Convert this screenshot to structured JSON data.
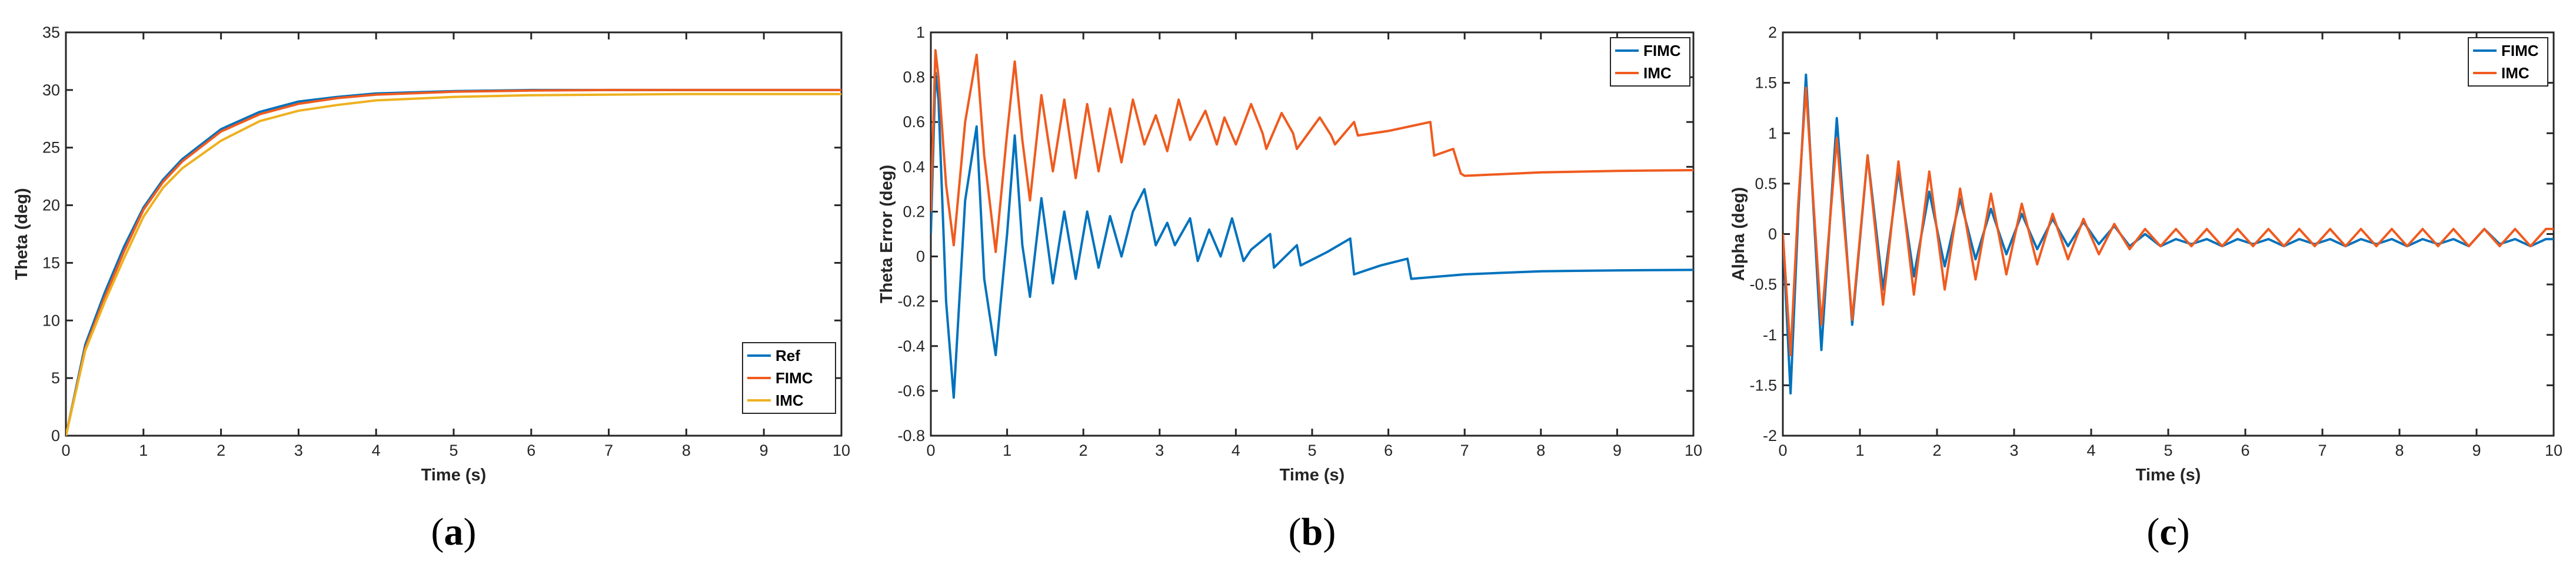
{
  "colors": {
    "blue": "#0072bd",
    "orange": "#ef5b1f",
    "yellow": "#edb120",
    "axis": "#262626"
  },
  "chart_data": [
    {
      "type": "line",
      "panel_label": "a",
      "xlabel": "Time (s)",
      "ylabel": "Theta (deg)",
      "xlim": [
        0,
        10
      ],
      "ylim": [
        0,
        35
      ],
      "xticks": [
        0,
        1,
        2,
        3,
        4,
        5,
        6,
        7,
        8,
        9,
        10
      ],
      "yticks": [
        0,
        5,
        10,
        15,
        20,
        25,
        30,
        35
      ],
      "grid": false,
      "legend": {
        "position": "bottom-right",
        "entries": [
          "Ref",
          "FIMC",
          "IMC"
        ]
      },
      "series": [
        {
          "name": "Ref",
          "color": "#0072bd",
          "x": [
            0,
            0.25,
            0.5,
            0.75,
            1,
            1.25,
            1.5,
            2,
            2.5,
            3,
            3.5,
            4,
            5,
            6,
            7,
            8,
            9,
            10
          ],
          "values": [
            0,
            7.9,
            12.4,
            16.4,
            19.8,
            22.2,
            24.0,
            26.6,
            28.1,
            29.0,
            29.4,
            29.7,
            29.9,
            30.0,
            30.0,
            30.0,
            30.0,
            30.0
          ]
        },
        {
          "name": "FIMC",
          "color": "#ef5b1f",
          "x": [
            0,
            0.25,
            0.5,
            0.75,
            1,
            1.25,
            1.5,
            2,
            2.5,
            3,
            3.5,
            4,
            5,
            6,
            7,
            8,
            9,
            10
          ],
          "values": [
            0,
            7.6,
            12.0,
            16.0,
            19.6,
            22.0,
            23.8,
            26.4,
            27.9,
            28.8,
            29.3,
            29.6,
            29.85,
            29.95,
            30.0,
            30.0,
            30.0,
            30.0
          ]
        },
        {
          "name": "IMC",
          "color": "#edb120",
          "x": [
            0,
            0.25,
            0.5,
            0.75,
            1,
            1.25,
            1.5,
            2,
            2.5,
            3,
            3.5,
            4,
            5,
            6,
            7,
            8,
            9,
            10
          ],
          "values": [
            0,
            7.4,
            11.6,
            15.4,
            19.0,
            21.5,
            23.2,
            25.6,
            27.3,
            28.2,
            28.7,
            29.1,
            29.4,
            29.55,
            29.6,
            29.65,
            29.65,
            29.65
          ]
        }
      ]
    },
    {
      "type": "line",
      "panel_label": "b",
      "xlabel": "Time (s)",
      "ylabel": "Theta Error (deg)",
      "xlim": [
        0,
        10
      ],
      "ylim": [
        -0.8,
        1
      ],
      "xticks": [
        0,
        1,
        2,
        3,
        4,
        5,
        6,
        7,
        8,
        9,
        10
      ],
      "yticks": [
        -0.8,
        -0.6,
        -0.4,
        -0.2,
        0,
        0.2,
        0.4,
        0.6,
        0.8,
        1
      ],
      "grid": false,
      "legend": {
        "position": "top-right",
        "entries": [
          "FIMC",
          "IMC"
        ]
      },
      "series": [
        {
          "name": "FIMC",
          "color": "#0072bd",
          "x": [
            0,
            0.06,
            0.1,
            0.2,
            0.3,
            0.45,
            0.6,
            0.7,
            0.85,
            1.0,
            1.1,
            1.2,
            1.3,
            1.45,
            1.6,
            1.75,
            1.9,
            2.05,
            2.2,
            2.35,
            2.5,
            2.65,
            2.8,
            2.95,
            3.1,
            3.2,
            3.4,
            3.5,
            3.65,
            3.8,
            3.95,
            4.1,
            4.2,
            4.45,
            4.5,
            4.8,
            4.85,
            5.2,
            5.5,
            5.55,
            5.9,
            6.25,
            6.3,
            7,
            8,
            9,
            10
          ],
          "values": [
            0.1,
            0.82,
            0.7,
            -0.2,
            -0.63,
            0.25,
            0.58,
            -0.1,
            -0.44,
            0.1,
            0.54,
            0.05,
            -0.18,
            0.26,
            -0.12,
            0.2,
            -0.1,
            0.2,
            -0.05,
            0.18,
            0.0,
            0.2,
            0.3,
            0.05,
            0.15,
            0.05,
            0.17,
            -0.02,
            0.12,
            0.0,
            0.17,
            -0.02,
            0.03,
            0.1,
            -0.05,
            0.05,
            -0.04,
            0.02,
            0.08,
            -0.08,
            -0.04,
            -0.01,
            -0.1,
            -0.08,
            -0.066,
            -0.062,
            -0.06
          ]
        },
        {
          "name": "IMC",
          "color": "#ef5b1f",
          "x": [
            0,
            0.06,
            0.1,
            0.2,
            0.3,
            0.45,
            0.6,
            0.7,
            0.85,
            1.0,
            1.1,
            1.2,
            1.3,
            1.45,
            1.6,
            1.75,
            1.9,
            2.05,
            2.2,
            2.35,
            2.5,
            2.65,
            2.8,
            2.95,
            3.1,
            3.25,
            3.4,
            3.6,
            3.75,
            3.85,
            4.0,
            4.2,
            4.35,
            4.4,
            4.6,
            4.75,
            4.8,
            5.1,
            5.25,
            5.3,
            5.55,
            5.6,
            6.0,
            6.55,
            6.6,
            6.85,
            6.95,
            7,
            8,
            9,
            10
          ],
          "values": [
            0.2,
            0.92,
            0.8,
            0.32,
            0.05,
            0.6,
            0.9,
            0.45,
            0.02,
            0.55,
            0.87,
            0.52,
            0.25,
            0.72,
            0.38,
            0.7,
            0.35,
            0.68,
            0.38,
            0.66,
            0.42,
            0.7,
            0.5,
            0.63,
            0.47,
            0.7,
            0.52,
            0.65,
            0.5,
            0.62,
            0.5,
            0.68,
            0.55,
            0.48,
            0.64,
            0.55,
            0.48,
            0.62,
            0.54,
            0.5,
            0.6,
            0.54,
            0.56,
            0.6,
            0.45,
            0.48,
            0.37,
            0.36,
            0.375,
            0.382,
            0.385
          ]
        }
      ]
    },
    {
      "type": "line",
      "panel_label": "c",
      "xlabel": "Time (s)",
      "ylabel": "Alpha (deg)",
      "xlim": [
        0,
        10
      ],
      "ylim": [
        -2,
        2
      ],
      "xticks": [
        0,
        1,
        2,
        3,
        4,
        5,
        6,
        7,
        8,
        9,
        10
      ],
      "yticks": [
        -2,
        -1.5,
        -1,
        -0.5,
        0,
        0.5,
        1,
        1.5,
        2
      ],
      "grid": false,
      "legend": {
        "position": "top-right",
        "entries": [
          "FIMC",
          "IMC"
        ]
      },
      "series": [
        {
          "name": "FIMC",
          "color": "#0072bd",
          "x": [
            0,
            0.1,
            0.2,
            0.3,
            0.5,
            0.7,
            0.9,
            1.1,
            1.3,
            1.5,
            1.7,
            1.9,
            2.1,
            2.3,
            2.5,
            2.7,
            2.9,
            3.1,
            3.3,
            3.5,
            3.7,
            3.9,
            4.1,
            4.3,
            4.5,
            4.7,
            4.9,
            5.1,
            5.3,
            5.5,
            5.7,
            5.9,
            6.1,
            6.3,
            6.5,
            6.7,
            6.9,
            7.1,
            7.3,
            7.5,
            7.7,
            7.9,
            8.1,
            8.3,
            8.5,
            8.7,
            8.9,
            9.1,
            9.3,
            9.5,
            9.7,
            9.9,
            10
          ],
          "values": [
            0,
            -1.58,
            0.2,
            1.58,
            -1.15,
            1.15,
            -0.9,
            0.78,
            -0.55,
            0.62,
            -0.42,
            0.42,
            -0.32,
            0.35,
            -0.25,
            0.25,
            -0.2,
            0.2,
            -0.15,
            0.15,
            -0.12,
            0.12,
            -0.1,
            0.08,
            -0.12,
            0.0,
            -0.12,
            -0.05,
            -0.1,
            -0.05,
            -0.12,
            -0.05,
            -0.1,
            -0.05,
            -0.12,
            -0.05,
            -0.1,
            -0.05,
            -0.12,
            -0.05,
            -0.1,
            -0.05,
            -0.12,
            -0.05,
            -0.1,
            -0.05,
            -0.12,
            0.05,
            -0.1,
            -0.05,
            -0.12,
            -0.05,
            -0.05
          ]
        },
        {
          "name": "IMC",
          "color": "#ef5b1f",
          "x": [
            0,
            0.1,
            0.2,
            0.3,
            0.5,
            0.7,
            0.9,
            1.1,
            1.3,
            1.5,
            1.7,
            1.9,
            2.1,
            2.3,
            2.5,
            2.7,
            2.9,
            3.1,
            3.3,
            3.5,
            3.7,
            3.9,
            4.1,
            4.3,
            4.5,
            4.7,
            4.9,
            5.1,
            5.3,
            5.5,
            5.7,
            5.9,
            6.1,
            6.3,
            6.5,
            6.7,
            6.9,
            7.1,
            7.3,
            7.5,
            7.7,
            7.9,
            8.1,
            8.3,
            8.5,
            8.7,
            8.9,
            9.1,
            9.3,
            9.5,
            9.7,
            9.9,
            10
          ],
          "values": [
            0,
            -1.2,
            0.3,
            1.45,
            -0.9,
            0.95,
            -0.85,
            0.78,
            -0.7,
            0.72,
            -0.6,
            0.62,
            -0.55,
            0.45,
            -0.45,
            0.4,
            -0.4,
            0.3,
            -0.3,
            0.2,
            -0.25,
            0.15,
            -0.2,
            0.1,
            -0.15,
            0.05,
            -0.12,
            0.05,
            -0.12,
            0.05,
            -0.12,
            0.05,
            -0.12,
            0.05,
            -0.12,
            0.05,
            -0.12,
            0.05,
            -0.12,
            0.05,
            -0.12,
            0.05,
            -0.12,
            0.05,
            -0.12,
            0.05,
            -0.12,
            0.05,
            -0.12,
            0.05,
            -0.12,
            0.05,
            0.05
          ]
        }
      ]
    }
  ]
}
